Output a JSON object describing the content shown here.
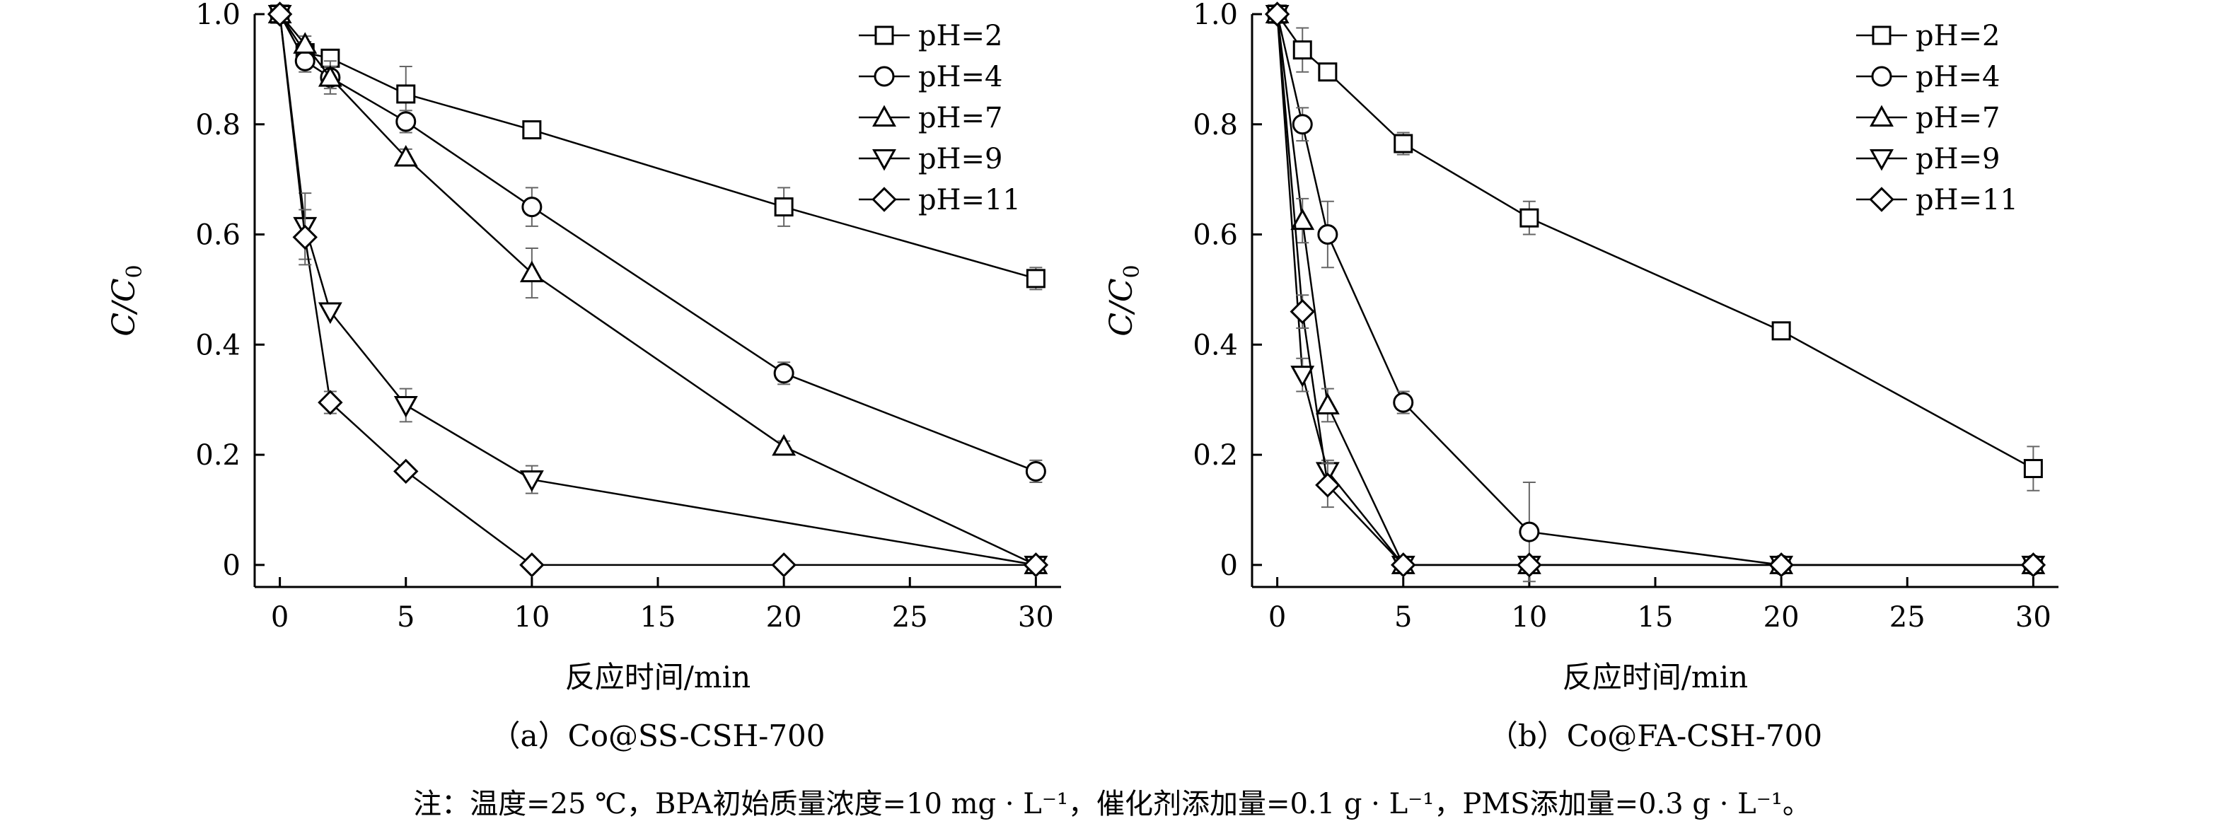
{
  "chart_data": [
    {
      "type": "line",
      "xlabel": "反应时间/min",
      "ylabel": {
        "main": "C/C",
        "sub": "0"
      },
      "caption": "（a）Co@SS-CSH-700",
      "xlim": [
        -1,
        31
      ],
      "ylim": [
        -0.04,
        1.0
      ],
      "xticks": [
        0,
        5,
        10,
        15,
        20,
        25,
        30
      ],
      "yticks": [
        0,
        0.2,
        0.4,
        0.6,
        0.8,
        1.0
      ],
      "ytick_labels": [
        "0",
        "0.2",
        "0.4",
        "0.6",
        "0.8",
        "1.0"
      ],
      "grid": false,
      "legend": "top-right",
      "series": [
        {
          "name": "pH=2",
          "marker": "square",
          "x": [
            0,
            1,
            2,
            5,
            10,
            20,
            30
          ],
          "y": [
            1.0,
            0.93,
            0.92,
            0.855,
            0.79,
            0.65,
            0.52
          ],
          "err": [
            0,
            0.02,
            0.01,
            0.05,
            0.01,
            0.035,
            0.02
          ]
        },
        {
          "name": "pH=4",
          "marker": "circle",
          "x": [
            0,
            1,
            2,
            5,
            10,
            20,
            30
          ],
          "y": [
            1.0,
            0.915,
            0.885,
            0.805,
            0.65,
            0.348,
            0.17
          ],
          "err": [
            0,
            0.02,
            0.02,
            0.02,
            0.035,
            0.02,
            0.02
          ]
        },
        {
          "name": "pH=7",
          "marker": "triangle-up",
          "x": [
            0,
            1,
            2,
            5,
            10,
            20,
            30
          ],
          "y": [
            1.0,
            0.945,
            0.885,
            0.74,
            0.53,
            0.215,
            0.0
          ],
          "err": [
            0,
            0.015,
            0.03,
            0.015,
            0.045,
            0.01,
            0.0
          ]
        },
        {
          "name": "pH=9",
          "marker": "triangle-down",
          "x": [
            0,
            1,
            2,
            5,
            10,
            30
          ],
          "y": [
            1.0,
            0.615,
            0.46,
            0.29,
            0.155,
            0.0
          ],
          "err": [
            0,
            0.06,
            0.0,
            0.03,
            0.025,
            0.0
          ]
        },
        {
          "name": "pH=11",
          "marker": "diamond",
          "x": [
            0,
            1,
            2,
            5,
            10,
            20,
            30
          ],
          "y": [
            1.0,
            0.595,
            0.295,
            0.17,
            0.0,
            0.0,
            0.0
          ],
          "err": [
            0,
            0.05,
            0.02,
            0.005,
            0.0,
            0.0,
            0.0
          ]
        }
      ]
    },
    {
      "type": "line",
      "xlabel": "反应时间/min",
      "ylabel": {
        "main": "C/C",
        "sub": "0"
      },
      "caption": "（b）Co@FA-CSH-700",
      "xlim": [
        -1,
        31
      ],
      "ylim": [
        -0.04,
        1.0
      ],
      "xticks": [
        0,
        5,
        10,
        15,
        20,
        25,
        30
      ],
      "yticks": [
        0,
        0.2,
        0.4,
        0.6,
        0.8,
        1.0
      ],
      "ytick_labels": [
        "0",
        "0.2",
        "0.4",
        "0.6",
        "0.8",
        "1.0"
      ],
      "grid": false,
      "legend": "top-right",
      "series": [
        {
          "name": "pH=2",
          "marker": "square",
          "x": [
            0,
            1,
            2,
            5,
            10,
            20,
            30
          ],
          "y": [
            1.0,
            0.935,
            0.895,
            0.765,
            0.63,
            0.425,
            0.175
          ],
          "err": [
            0,
            0.04,
            0.015,
            0.02,
            0.03,
            0.005,
            0.04
          ]
        },
        {
          "name": "pH=4",
          "marker": "circle",
          "x": [
            0,
            1,
            2,
            5,
            10,
            20,
            30
          ],
          "y": [
            1.0,
            0.8,
            0.6,
            0.295,
            0.06,
            0.0,
            0.0
          ],
          "err": [
            0,
            0.03,
            0.06,
            0.02,
            0.09,
            0.0,
            0.0
          ]
        },
        {
          "name": "pH=7",
          "marker": "triangle-up",
          "x": [
            0,
            1,
            2,
            5,
            10,
            20,
            30
          ],
          "y": [
            1.0,
            0.625,
            0.29,
            0.0,
            0.0,
            0.0,
            0.0
          ],
          "err": [
            0,
            0.04,
            0.03,
            0.0,
            0.0,
            0.0,
            0.0
          ]
        },
        {
          "name": "pH=9",
          "marker": "triangle-down",
          "x": [
            0,
            1,
            2,
            5,
            10,
            20,
            30
          ],
          "y": [
            1.0,
            0.345,
            0.17,
            0.0,
            0.0,
            0.0,
            0.0
          ],
          "err": [
            0,
            0.03,
            0.02,
            0.0,
            0.0,
            0.0,
            0.0
          ]
        },
        {
          "name": "pH=11",
          "marker": "diamond",
          "x": [
            0,
            1,
            2,
            5,
            10,
            20,
            30
          ],
          "y": [
            1.0,
            0.46,
            0.145,
            0.0,
            0.0,
            0.0,
            0.0
          ],
          "err": [
            0,
            0.03,
            0.04,
            0.0,
            0.0,
            0.0,
            0.0
          ]
        }
      ]
    }
  ],
  "footnote": "注：温度=25 ℃，BPA初始质量浓度=10 mg · L⁻¹，催化剂添加量=0.1 g · L⁻¹，PMS添加量=0.3 g · L⁻¹。"
}
